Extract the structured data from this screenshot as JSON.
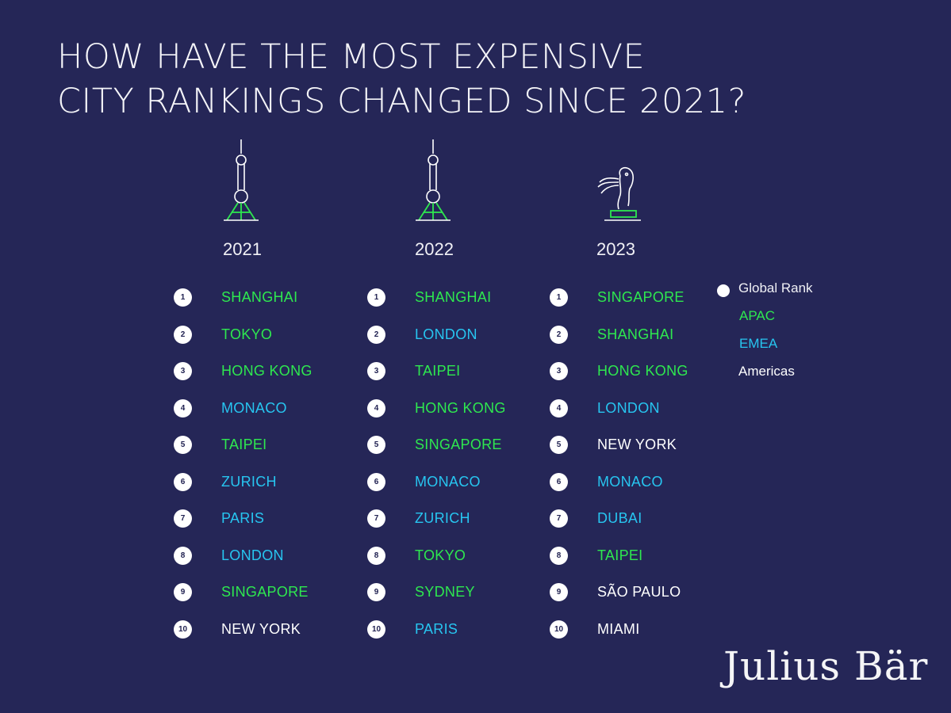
{
  "title": {
    "line1": "HOW HAVE THE MOST EXPENSIVE",
    "line2": "CITY RANKINGS CHANGED SINCE 2021?"
  },
  "colors": {
    "background": "#252657",
    "apac": "#2ee84f",
    "emea": "#27c5f0",
    "americas": "#ffffff",
    "rank_badge": "#ffffff"
  },
  "icons": {
    "2021": "tv-tower-icon",
    "2022": "tv-tower-icon",
    "2023": "merlion-icon"
  },
  "legend": {
    "global_rank": "Global Rank",
    "apac": "APAC",
    "emea": "EMEA",
    "americas": "Americas"
  },
  "brand": "Julius Bär",
  "chart_data": {
    "type": "table",
    "title": "HOW HAVE THE MOST EXPENSIVE CITY RANKINGS CHANGED SINCE 2021?",
    "columns": [
      {
        "year": "2021",
        "rows": [
          {
            "rank": "1",
            "city": "SHANGHAI",
            "region": "APAC"
          },
          {
            "rank": "2",
            "city": "TOKYO",
            "region": "APAC"
          },
          {
            "rank": "3",
            "city": "HONG KONG",
            "region": "APAC"
          },
          {
            "rank": "4",
            "city": "MONACO",
            "region": "EMEA"
          },
          {
            "rank": "5",
            "city": "TAIPEI",
            "region": "APAC"
          },
          {
            "rank": "6",
            "city": "ZURICH",
            "region": "EMEA"
          },
          {
            "rank": "7",
            "city": "PARIS",
            "region": "EMEA"
          },
          {
            "rank": "8",
            "city": "LONDON",
            "region": "EMEA"
          },
          {
            "rank": "9",
            "city": "SINGAPORE",
            "region": "APAC"
          },
          {
            "rank": "10",
            "city": "NEW YORK",
            "region": "Americas"
          }
        ]
      },
      {
        "year": "2022",
        "rows": [
          {
            "rank": "1",
            "city": "SHANGHAI",
            "region": "APAC"
          },
          {
            "rank": "2",
            "city": "LONDON",
            "region": "EMEA"
          },
          {
            "rank": "3",
            "city": "TAIPEI",
            "region": "APAC"
          },
          {
            "rank": "4",
            "city": "HONG KONG",
            "region": "APAC"
          },
          {
            "rank": "5",
            "city": "SINGAPORE",
            "region": "APAC"
          },
          {
            "rank": "6",
            "city": "MONACO",
            "region": "EMEA"
          },
          {
            "rank": "7",
            "city": "ZURICH",
            "region": "EMEA"
          },
          {
            "rank": "8",
            "city": "TOKYO",
            "region": "APAC"
          },
          {
            "rank": "9",
            "city": "SYDNEY",
            "region": "APAC"
          },
          {
            "rank": "10",
            "city": "PARIS",
            "region": "EMEA"
          }
        ]
      },
      {
        "year": "2023",
        "rows": [
          {
            "rank": "1",
            "city": "SINGAPORE",
            "region": "APAC"
          },
          {
            "rank": "2",
            "city": "SHANGHAI",
            "region": "APAC"
          },
          {
            "rank": "3",
            "city": "HONG KONG",
            "region": "APAC"
          },
          {
            "rank": "4",
            "city": "LONDON",
            "region": "EMEA"
          },
          {
            "rank": "5",
            "city": "NEW YORK",
            "region": "Americas"
          },
          {
            "rank": "6",
            "city": "MONACO",
            "region": "EMEA"
          },
          {
            "rank": "7",
            "city": "DUBAI",
            "region": "EMEA"
          },
          {
            "rank": "8",
            "city": "TAIPEI",
            "region": "APAC"
          },
          {
            "rank": "9",
            "city": "SÃO PAULO",
            "region": "Americas"
          },
          {
            "rank": "10",
            "city": "MIAMI",
            "region": "Americas"
          }
        ]
      }
    ]
  }
}
